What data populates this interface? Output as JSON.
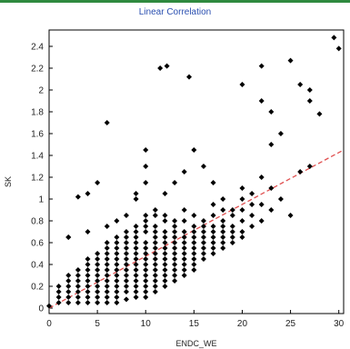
{
  "chart_data": {
    "type": "scatter",
    "title": "Linear Correlation",
    "xlabel": "ENDC_WE",
    "ylabel": "SK",
    "xlim": [
      0,
      30.5
    ],
    "ylim": [
      -0.05,
      2.55
    ],
    "x_ticks": [
      "0",
      "5",
      "10",
      "15",
      "20",
      "25",
      "30"
    ],
    "y_ticks": [
      "0",
      "0.2",
      "0.4",
      "0.6",
      "0.8",
      "1",
      "1.2",
      "1.4",
      "1.6",
      "1.8",
      "2",
      "2.2",
      "2.4"
    ],
    "grid": false,
    "colors": {
      "points": "#000000",
      "trend": "#e05050",
      "title": "#2a4fb0",
      "frame": "#2f8a3f"
    },
    "trend_line": {
      "style": "dashed",
      "from": [
        0,
        0
      ],
      "to": [
        30.5,
        1.45
      ]
    },
    "points": [
      [
        0,
        0.02
      ],
      [
        1,
        0.05
      ],
      [
        1,
        0.1
      ],
      [
        1,
        0.15
      ],
      [
        1,
        0.2
      ],
      [
        2,
        0.05
      ],
      [
        2,
        0.1
      ],
      [
        2,
        0.15
      ],
      [
        2,
        0.2
      ],
      [
        2,
        0.25
      ],
      [
        2,
        0.3
      ],
      [
        3,
        0.05
      ],
      [
        3,
        0.1
      ],
      [
        3,
        0.15
      ],
      [
        3,
        0.2
      ],
      [
        3,
        0.25
      ],
      [
        3,
        0.3
      ],
      [
        3,
        0.35
      ],
      [
        4,
        0.05
      ],
      [
        4,
        0.1
      ],
      [
        4,
        0.15
      ],
      [
        4,
        0.2
      ],
      [
        4,
        0.25
      ],
      [
        4,
        0.3
      ],
      [
        4,
        0.35
      ],
      [
        4,
        0.4
      ],
      [
        4,
        0.45
      ],
      [
        5,
        0.05
      ],
      [
        5,
        0.1
      ],
      [
        5,
        0.15
      ],
      [
        5,
        0.2
      ],
      [
        5,
        0.25
      ],
      [
        5,
        0.3
      ],
      [
        5,
        0.35
      ],
      [
        5,
        0.4
      ],
      [
        5,
        0.45
      ],
      [
        5,
        0.5
      ],
      [
        6,
        0.05
      ],
      [
        6,
        0.1
      ],
      [
        6,
        0.15
      ],
      [
        6,
        0.2
      ],
      [
        6,
        0.25
      ],
      [
        6,
        0.3
      ],
      [
        6,
        0.35
      ],
      [
        6,
        0.4
      ],
      [
        6,
        0.45
      ],
      [
        6,
        0.5
      ],
      [
        6,
        0.55
      ],
      [
        6,
        0.6
      ],
      [
        7,
        0.05
      ],
      [
        7,
        0.1
      ],
      [
        7,
        0.15
      ],
      [
        7,
        0.2
      ],
      [
        7,
        0.25
      ],
      [
        7,
        0.3
      ],
      [
        7,
        0.35
      ],
      [
        7,
        0.4
      ],
      [
        7,
        0.45
      ],
      [
        7,
        0.5
      ],
      [
        7,
        0.55
      ],
      [
        7,
        0.6
      ],
      [
        7,
        0.65
      ],
      [
        8,
        0.08
      ],
      [
        8,
        0.15
      ],
      [
        8,
        0.2
      ],
      [
        8,
        0.25
      ],
      [
        8,
        0.3
      ],
      [
        8,
        0.35
      ],
      [
        8,
        0.4
      ],
      [
        8,
        0.45
      ],
      [
        8,
        0.5
      ],
      [
        8,
        0.55
      ],
      [
        8,
        0.6
      ],
      [
        8,
        0.65
      ],
      [
        8,
        0.7
      ],
      [
        9,
        0.1
      ],
      [
        9,
        0.15
      ],
      [
        9,
        0.2
      ],
      [
        9,
        0.25
      ],
      [
        9,
        0.3
      ],
      [
        9,
        0.35
      ],
      [
        9,
        0.4
      ],
      [
        9,
        0.45
      ],
      [
        9,
        0.5
      ],
      [
        9,
        0.55
      ],
      [
        9,
        0.6
      ],
      [
        9,
        0.65
      ],
      [
        9,
        0.7
      ],
      [
        9,
        0.75
      ],
      [
        10,
        0.1
      ],
      [
        10,
        0.15
      ],
      [
        10,
        0.2
      ],
      [
        10,
        0.25
      ],
      [
        10,
        0.3
      ],
      [
        10,
        0.35
      ],
      [
        10,
        0.4
      ],
      [
        10,
        0.45
      ],
      [
        10,
        0.5
      ],
      [
        10,
        0.55
      ],
      [
        10,
        0.6
      ],
      [
        10,
        0.7
      ],
      [
        10,
        0.75
      ],
      [
        10,
        0.8
      ],
      [
        10,
        0.85
      ],
      [
        11,
        0.15
      ],
      [
        11,
        0.2
      ],
      [
        11,
        0.25
      ],
      [
        11,
        0.3
      ],
      [
        11,
        0.35
      ],
      [
        11,
        0.4
      ],
      [
        11,
        0.45
      ],
      [
        11,
        0.5
      ],
      [
        11,
        0.55
      ],
      [
        11,
        0.6
      ],
      [
        11,
        0.65
      ],
      [
        11,
        0.7
      ],
      [
        11,
        0.75
      ],
      [
        11,
        0.85
      ],
      [
        11,
        0.9
      ],
      [
        12,
        0.2
      ],
      [
        12,
        0.25
      ],
      [
        12,
        0.3
      ],
      [
        12,
        0.35
      ],
      [
        12,
        0.4
      ],
      [
        12,
        0.45
      ],
      [
        12,
        0.5
      ],
      [
        12,
        0.55
      ],
      [
        12,
        0.6
      ],
      [
        12,
        0.65
      ],
      [
        12,
        0.7
      ],
      [
        12,
        0.8
      ],
      [
        12,
        0.85
      ],
      [
        13,
        0.25
      ],
      [
        13,
        0.3
      ],
      [
        13,
        0.35
      ],
      [
        13,
        0.4
      ],
      [
        13,
        0.45
      ],
      [
        13,
        0.5
      ],
      [
        13,
        0.55
      ],
      [
        13,
        0.6
      ],
      [
        13,
        0.65
      ],
      [
        13,
        0.7
      ],
      [
        13,
        0.75
      ],
      [
        13,
        0.8
      ],
      [
        14,
        0.3
      ],
      [
        14,
        0.35
      ],
      [
        14,
        0.4
      ],
      [
        14,
        0.45
      ],
      [
        14,
        0.5
      ],
      [
        14,
        0.55
      ],
      [
        14,
        0.6
      ],
      [
        14,
        0.65
      ],
      [
        14,
        0.7
      ],
      [
        14,
        0.8
      ],
      [
        14,
        0.9
      ],
      [
        15,
        0.35
      ],
      [
        15,
        0.4
      ],
      [
        15,
        0.45
      ],
      [
        15,
        0.5
      ],
      [
        15,
        0.55
      ],
      [
        15,
        0.6
      ],
      [
        15,
        0.65
      ],
      [
        15,
        0.7
      ],
      [
        15,
        0.75
      ],
      [
        15,
        0.85
      ],
      [
        16,
        0.45
      ],
      [
        16,
        0.5
      ],
      [
        16,
        0.55
      ],
      [
        16,
        0.6
      ],
      [
        16,
        0.65
      ],
      [
        16,
        0.7
      ],
      [
        16,
        0.75
      ],
      [
        16,
        0.8
      ],
      [
        17,
        0.5
      ],
      [
        17,
        0.55
      ],
      [
        17,
        0.6
      ],
      [
        17,
        0.65
      ],
      [
        17,
        0.7
      ],
      [
        17,
        0.75
      ],
      [
        17,
        0.85
      ],
      [
        17,
        0.95
      ],
      [
        18,
        0.55
      ],
      [
        18,
        0.6
      ],
      [
        18,
        0.65
      ],
      [
        18,
        0.7
      ],
      [
        18,
        0.75
      ],
      [
        18,
        0.8
      ],
      [
        18,
        0.9
      ],
      [
        18,
        1.0
      ],
      [
        19,
        0.6
      ],
      [
        19,
        0.65
      ],
      [
        19,
        0.7
      ],
      [
        19,
        0.75
      ],
      [
        19,
        0.85
      ],
      [
        19,
        0.9
      ],
      [
        20,
        0.65
      ],
      [
        20,
        0.7
      ],
      [
        20,
        0.8
      ],
      [
        20,
        0.9
      ],
      [
        20,
        1.0
      ],
      [
        20,
        1.1
      ],
      [
        21,
        0.75
      ],
      [
        21,
        0.85
      ],
      [
        21,
        0.95
      ],
      [
        21,
        1.05
      ],
      [
        22,
        0.8
      ],
      [
        22,
        0.95
      ],
      [
        22,
        1.2
      ],
      [
        23,
        0.9
      ],
      [
        23,
        1.1
      ],
      [
        24,
        1.0
      ],
      [
        25,
        0.85
      ],
      [
        26,
        1.25
      ],
      [
        27,
        1.3
      ],
      [
        2,
        0.65
      ],
      [
        2,
        0.65
      ],
      [
        3,
        1.02
      ],
      [
        4,
        1.05
      ],
      [
        5,
        1.15
      ],
      [
        4,
        0.7
      ],
      [
        6,
        0.75
      ],
      [
        7,
        0.8
      ],
      [
        8,
        0.85
      ],
      [
        6,
        1.7
      ],
      [
        9,
        1.0
      ],
      [
        9,
        1.05
      ],
      [
        10,
        1.15
      ],
      [
        10,
        1.3
      ],
      [
        10,
        1.45
      ],
      [
        12,
        1.05
      ],
      [
        13,
        1.15
      ],
      [
        14,
        1.25
      ],
      [
        11.5,
        2.2
      ],
      [
        12.2,
        2.22
      ],
      [
        14.5,
        2.12
      ],
      [
        15,
        1.45
      ],
      [
        16,
        1.3
      ],
      [
        17,
        1.15
      ],
      [
        20,
        2.05
      ],
      [
        22,
        2.22
      ],
      [
        22,
        1.9
      ],
      [
        23,
        1.8
      ],
      [
        23,
        1.5
      ],
      [
        24,
        1.6
      ],
      [
        25,
        2.27
      ],
      [
        26,
        2.05
      ],
      [
        27,
        2.0
      ],
      [
        27,
        1.9
      ],
      [
        28,
        1.78
      ],
      [
        29.5,
        2.48
      ],
      [
        30,
        2.38
      ]
    ]
  }
}
